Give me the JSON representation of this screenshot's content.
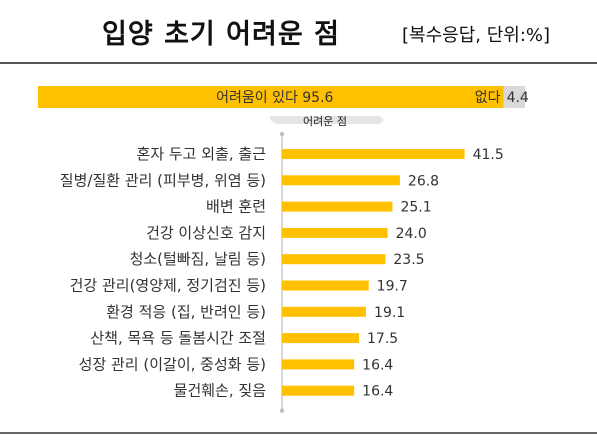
{
  "title": "입양 초기 어려운 점",
  "subtitle": "[복수응답, 단위:%]",
  "colors": {
    "bar": "#FFC000",
    "bar_grey": "#D9D9D9",
    "axis": "#BFBFBF",
    "rule": "#555555"
  },
  "chart_data": [
    {
      "type": "bar",
      "orientation": "horizontal-stacked",
      "categories": [
        "어려움이 있다",
        "없다"
      ],
      "values": [
        95.6,
        4.4
      ],
      "labels": [
        "어려움이 있다 95.6",
        "없다"
      ],
      "value_labels": [
        "",
        "4.4"
      ]
    },
    {
      "type": "bar",
      "orientation": "horizontal",
      "title": "어려운 점",
      "categories": [
        "혼자 두고 외출, 출근",
        "질병/질환 관리 (피부병, 위염 등)",
        "배변 훈련",
        "건강 이상신호 감지",
        "청소(털빠짐, 날림 등)",
        "건강 관리(영양제, 정기검진 등)",
        "환경 적응 (집, 반려인 등)",
        "산책, 목욕 등 돌봄시간 조절",
        "성장 관리 (이갈이, 중성화 등)",
        "물건훼손, 짖음"
      ],
      "values": [
        41.5,
        26.8,
        25.1,
        24.0,
        23.5,
        19.7,
        19.1,
        17.5,
        16.4,
        16.4
      ],
      "value_labels": [
        "41.5",
        "26.8",
        "25.1",
        "24.0",
        "23.5",
        "19.7",
        "19.1",
        "17.5",
        "16.4",
        "16.4"
      ]
    }
  ]
}
